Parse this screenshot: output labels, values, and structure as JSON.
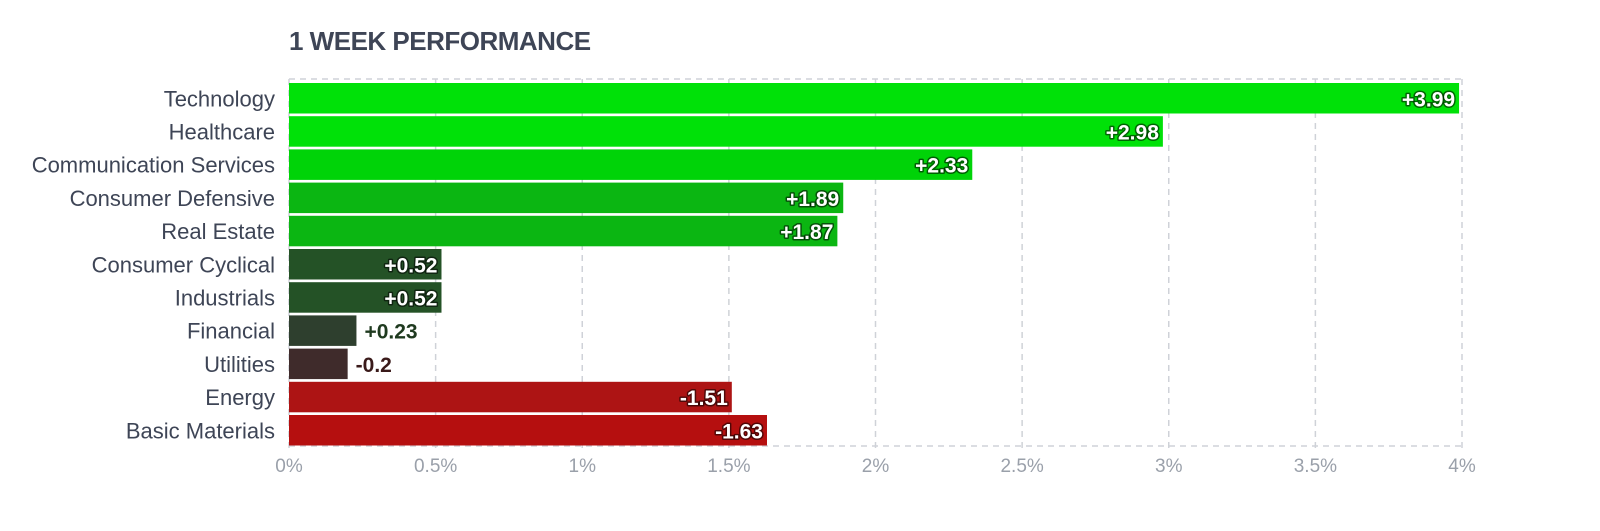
{
  "title": "1 WEEK PERFORMANCE",
  "chart_data": {
    "type": "bar",
    "orientation": "horizontal",
    "title": "1 WEEK PERFORMANCE",
    "xlabel": "",
    "ylabel": "",
    "xlim": [
      0,
      4
    ],
    "grid": true,
    "categories": [
      "Technology",
      "Healthcare",
      "Communication Services",
      "Consumer Defensive",
      "Real Estate",
      "Consumer Cyclical",
      "Industrials",
      "Financial",
      "Utilities",
      "Energy",
      "Basic Materials"
    ],
    "values": [
      3.99,
      2.98,
      2.33,
      1.89,
      1.87,
      0.52,
      0.52,
      0.23,
      -0.2,
      -1.51,
      -1.63
    ],
    "value_labels": [
      "+3.99",
      "+2.98",
      "+2.33",
      "+1.89",
      "+1.87",
      "+0.52",
      "+0.52",
      "+0.23",
      "-0.2",
      "-1.51",
      "-1.63"
    ],
    "bar_colors": [
      "#00e108",
      "#00e108",
      "#00d308",
      "#0bb612",
      "#0bb612",
      "#245226",
      "#245226",
      "#2e3f2e",
      "#3f2b2b",
      "#ad1414",
      "#b50f0f"
    ],
    "x_ticks": [
      0,
      0.5,
      1,
      1.5,
      2,
      2.5,
      3,
      3.5,
      4
    ],
    "x_tick_labels": [
      "0%",
      "0.5%",
      "1%",
      "1.5%",
      "2%",
      "2.5%",
      "3%",
      "3.5%",
      "4%"
    ]
  }
}
